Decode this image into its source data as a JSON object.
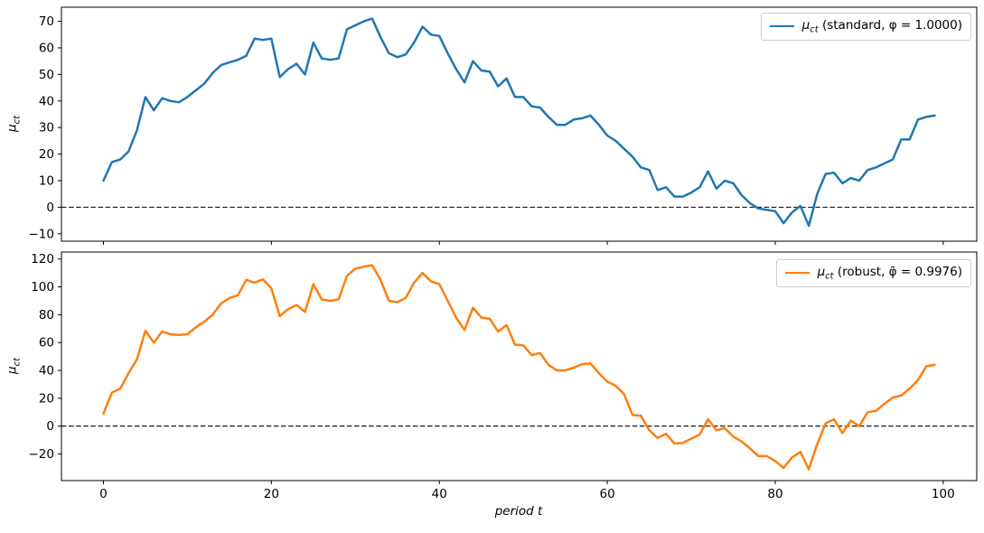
{
  "figure": {
    "background": "#ffffff",
    "xlabel": "period t",
    "ylabel": {
      "mu": "μ",
      "sub": "ct"
    }
  },
  "legend": {
    "top": {
      "mu": "μ",
      "sub": "ct",
      "rest": " (standard, φ = 1.0000)"
    },
    "bottom": {
      "mu": "μ",
      "sub": "ct",
      "rest": " (robust, φ̃ = 0.9976)"
    }
  },
  "chart_data": [
    {
      "type": "line",
      "title": "",
      "xlabel": "",
      "ylabel": "μct",
      "xlim": [
        -5,
        104
      ],
      "ylim": [
        -12.8,
        75.3
      ],
      "xticks": [
        0,
        20,
        40,
        60,
        80,
        100
      ],
      "yticks": [
        -10,
        0,
        10,
        20,
        30,
        40,
        50,
        60,
        70
      ],
      "grid": false,
      "zero_line": true,
      "legend_position": "upper right",
      "x_start": 0,
      "x_step": 1,
      "series": [
        {
          "name": "μct (standard, φ = 1.0000)",
          "color": "#1f77b4",
          "line_width": 2.5,
          "values": [
            10,
            17,
            18,
            21,
            29,
            41.5,
            36.5,
            41,
            40,
            39.5,
            41.5,
            44,
            46.5,
            50.5,
            53.5,
            54.5,
            55.5,
            57,
            63.5,
            63,
            63.5,
            49,
            52,
            54,
            50,
            62,
            56,
            55.5,
            56,
            67,
            68.5,
            70,
            71,
            64,
            58,
            56.5,
            57.5,
            62,
            68,
            65,
            64.5,
            58,
            52,
            47,
            55,
            51.5,
            51,
            45.5,
            48.5,
            41.5,
            41.5,
            38,
            37.5,
            34,
            31,
            31,
            33,
            33.5,
            34.5,
            31,
            27,
            25,
            22,
            19,
            15,
            14,
            6.5,
            7.5,
            4,
            4,
            5.5,
            7.5,
            13.5,
            7,
            10,
            9,
            4.5,
            1.5,
            -0.5,
            -1,
            -1.5,
            -6,
            -2,
            0.5,
            -7,
            5,
            12.5,
            13,
            9,
            11,
            10,
            14,
            15,
            16.5,
            18,
            25.5,
            25.5,
            33,
            34,
            34.5
          ]
        }
      ]
    },
    {
      "type": "line",
      "title": "",
      "xlabel": "period t",
      "ylabel": "μct",
      "xlim": [
        -5,
        104
      ],
      "ylim": [
        -39.1,
        125
      ],
      "xticks": [
        0,
        20,
        40,
        60,
        80,
        100
      ],
      "yticks": [
        -20,
        0,
        20,
        40,
        60,
        80,
        100,
        120
      ],
      "grid": false,
      "zero_line": true,
      "legend_position": "upper right",
      "x_start": 0,
      "x_step": 1,
      "series": [
        {
          "name": "μct (robust, φ̃ = 0.9976)",
          "color": "#ff7f0e",
          "line_width": 2.5,
          "values": [
            9,
            24,
            27,
            38,
            48,
            68.5,
            60,
            68,
            66,
            65.5,
            66,
            71,
            75,
            80,
            88,
            92,
            94,
            105,
            103,
            105.5,
            99,
            79,
            84,
            87,
            82,
            102,
            91,
            90,
            91,
            108,
            113,
            114.5,
            115.5,
            105,
            90,
            89,
            92,
            103,
            110,
            104,
            102,
            90,
            78,
            69,
            85,
            78,
            77,
            68,
            72.5,
            58.5,
            58,
            51,
            52.5,
            44,
            40,
            40,
            42,
            44.5,
            45,
            38,
            32,
            29,
            23,
            8,
            7.5,
            -3,
            -8.5,
            -5.5,
            -12.5,
            -12,
            -9,
            -6,
            5,
            -3,
            -1.5,
            -7.5,
            -11,
            -16,
            -21.5,
            -21.5,
            -25,
            -30,
            -22.5,
            -18.5,
            -31,
            -13,
            2,
            5,
            -5,
            4,
            0,
            10,
            11,
            16,
            20.5,
            22,
            27,
            33,
            43,
            44
          ]
        }
      ]
    }
  ]
}
